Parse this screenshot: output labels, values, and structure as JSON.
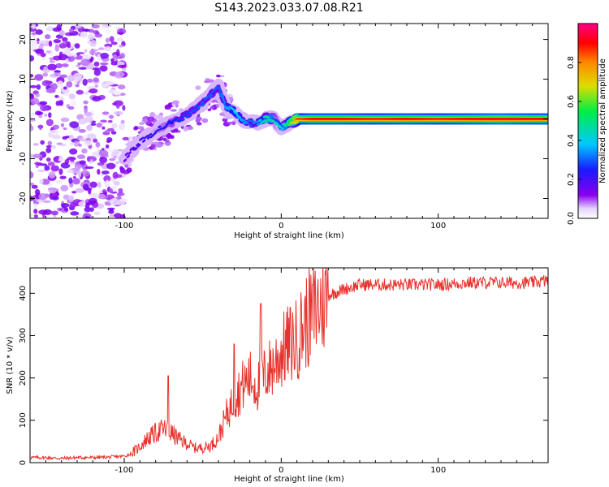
{
  "figure": {
    "title": "S143.2023.033.07.08.R21"
  },
  "chart_data": [
    {
      "type": "heatmap",
      "xlabel": "Height of straight line (km)",
      "ylabel": "Frequency (Hz)",
      "xlim": [
        -160,
        170
      ],
      "ylim": [
        -25,
        24
      ],
      "x_ticks": [
        -100,
        0,
        100
      ],
      "x_tick_labels": [
        "-100",
        "0",
        "100"
      ],
      "y_ticks": [
        -20,
        -10,
        0,
        10,
        20
      ],
      "y_tick_labels": [
        "-20",
        "-10",
        "0",
        "10",
        "20"
      ],
      "colorbar": {
        "label": "Normalized spectral amplitude",
        "range": [
          0,
          1
        ],
        "ticks": [
          0.0,
          0.2,
          0.4,
          0.6,
          0.8
        ],
        "tick_labels": [
          "0.0",
          "0.2",
          "0.4",
          "0.6",
          "0.8"
        ],
        "colormap": "rainbow (white-purple-blue-cyan-green-yellow-orange-red-magenta)"
      },
      "noise_region": {
        "x_range": [
          -160,
          -100
        ],
        "y_range": [
          -25,
          24
        ],
        "amplitude_range": [
          0.02,
          0.15
        ]
      },
      "ridge": {
        "description": "frequency of peak spectral amplitude vs height",
        "x": [
          -100,
          -90,
          -80,
          -70,
          -60,
          -50,
          -40,
          -35,
          -30,
          -25,
          -20,
          -15,
          -10,
          -5,
          0,
          5,
          10,
          20,
          40,
          60,
          80,
          100,
          120,
          140,
          160,
          170
        ],
        "y": [
          -10,
          -6,
          -3,
          -1,
          1,
          4,
          8,
          3,
          2,
          0,
          -1,
          -1,
          0,
          0,
          -2,
          -1,
          0,
          0,
          0,
          0,
          0,
          0,
          0,
          0,
          0,
          0
        ],
        "amplitude": [
          0.15,
          0.2,
          0.22,
          0.25,
          0.28,
          0.3,
          0.3,
          0.35,
          0.4,
          0.35,
          0.3,
          0.35,
          0.5,
          0.45,
          0.4,
          0.6,
          0.85,
          0.9,
          0.9,
          0.88,
          0.9,
          0.88,
          0.9,
          0.92,
          0.9,
          0.9
        ]
      }
    },
    {
      "type": "line",
      "xlabel": "Height of straight line (km)",
      "ylabel": "SNR (10 * v/v)",
      "xlim": [
        -160,
        170
      ],
      "ylim": [
        0,
        460
      ],
      "x_ticks": [
        -100,
        0,
        100
      ],
      "x_tick_labels": [
        "-100",
        "0",
        "100"
      ],
      "y_ticks": [
        0,
        100,
        200,
        300,
        400
      ],
      "y_tick_labels": [
        "0",
        "100",
        "200",
        "300",
        "400"
      ],
      "color": "#e8322d",
      "series": [
        {
          "x": [
            -160,
            -150,
            -140,
            -130,
            -120,
            -110,
            -100,
            -95,
            -90,
            -85,
            -80,
            -75,
            -70,
            -65,
            -60,
            -55,
            -50,
            -45,
            -40,
            -35,
            -30,
            -25,
            -20,
            -15,
            -10,
            -5,
            0,
            5,
            10,
            15,
            20,
            25,
            30,
            40,
            50,
            60,
            80,
            100,
            120,
            140,
            160,
            170
          ],
          "y": [
            12,
            12,
            10,
            12,
            12,
            13,
            15,
            22,
            38,
            58,
            70,
            80,
            70,
            55,
            45,
            35,
            35,
            40,
            60,
            110,
            150,
            180,
            200,
            180,
            210,
            230,
            260,
            280,
            290,
            330,
            350,
            375,
            395,
            410,
            420,
            420,
            420,
            420,
            425,
            425,
            425,
            430
          ]
        }
      ],
      "spikes": [
        {
          "x": -72,
          "y": 205
        },
        {
          "x": -30,
          "y": 280
        },
        {
          "x": -13,
          "y": 375
        },
        {
          "x": 20,
          "y": 420
        }
      ]
    }
  ]
}
